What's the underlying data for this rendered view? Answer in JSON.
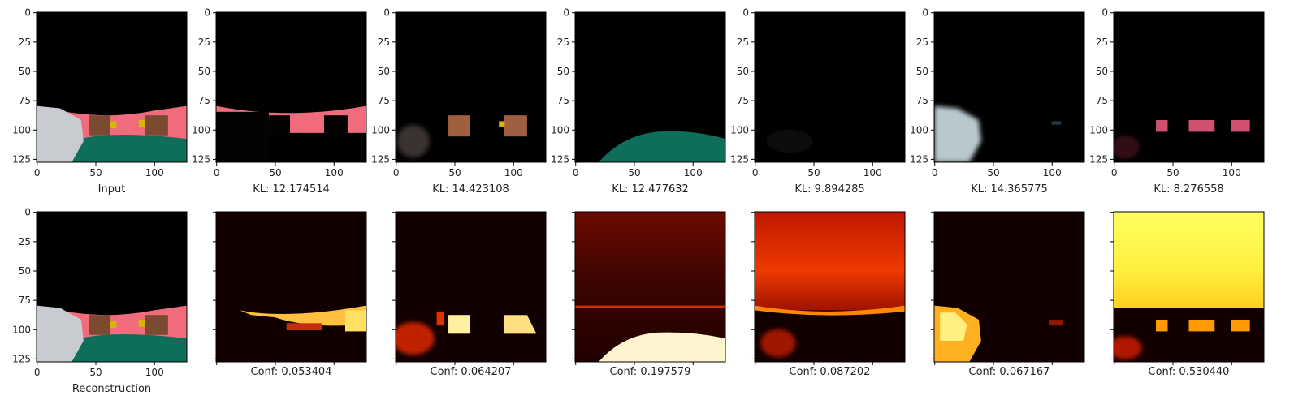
{
  "colors": {
    "sky": "#000000",
    "road": "#f06c7c",
    "ground": "#0f6e5a",
    "box": "#7b4a30",
    "yellow": "#d6b800",
    "car": "#c8ccd0",
    "heat_bg": "#120000",
    "heat_mid": "#b01800",
    "heat_hi": "#ff9a00",
    "heat_peak": "#ffff80"
  },
  "chart_data": {
    "type": "heatmap",
    "image_size": [
      128,
      128
    ],
    "x_ticks": [
      "0",
      "50",
      "100"
    ],
    "y_ticks": [
      "0",
      "25",
      "50",
      "75",
      "100",
      "125"
    ],
    "top_row": [
      {
        "caption": "Input",
        "kind": "scene-full"
      },
      {
        "caption": "KL: 12.174514",
        "kind": "road-dim",
        "kl": 12.174514
      },
      {
        "caption": "KL: 14.423108",
        "kind": "boxes",
        "kl": 14.423108
      },
      {
        "caption": "KL: 12.477632",
        "kind": "ground",
        "kl": 12.477632
      },
      {
        "caption": "KL: 9.894285",
        "kind": "dark",
        "kl": 9.894285
      },
      {
        "caption": "KL: 14.365775",
        "kind": "car",
        "kl": 14.365775
      },
      {
        "caption": "KL: 8.276558",
        "kind": "pink-stripes",
        "kl": 8.276558
      }
    ],
    "bottom_row": [
      {
        "caption": "Reconstruction",
        "kind": "scene-full"
      },
      {
        "caption": "Conf: 0.053404",
        "kind": "heat-road",
        "conf": 0.053404
      },
      {
        "caption": "Conf: 0.064207",
        "kind": "heat-boxes",
        "conf": 0.064207
      },
      {
        "caption": "Conf: 0.197579",
        "kind": "heat-ground",
        "conf": 0.197579
      },
      {
        "caption": "Conf: 0.087202",
        "kind": "heat-sky",
        "conf": 0.087202
      },
      {
        "caption": "Conf: 0.067167",
        "kind": "heat-car",
        "conf": 0.067167
      },
      {
        "caption": "Conf: 0.530440",
        "kind": "heat-bright",
        "conf": 0.53044
      }
    ]
  }
}
